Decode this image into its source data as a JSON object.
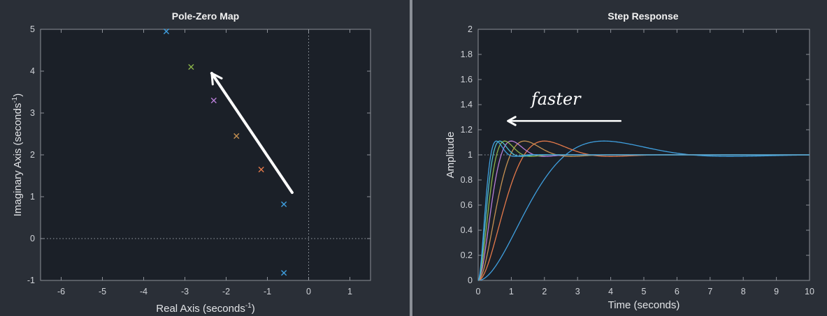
{
  "chart_data": [
    {
      "type": "scatter",
      "title": "Pole-Zero Map",
      "xlabel": "Real Axis (seconds",
      "xlabel_sup": "-1",
      "xlabel_suffix": ")",
      "ylabel": "Imaginary Axis (seconds",
      "ylabel_sup": "-1",
      "ylabel_suffix": ")",
      "xlim": [
        -6.5,
        1.5
      ],
      "ylim": [
        -1,
        5
      ],
      "xticks": [
        -6,
        -5,
        -4,
        -3,
        -2,
        -1,
        0,
        1
      ],
      "yticks": [
        -1,
        0,
        1,
        2,
        3,
        4,
        5
      ],
      "grid": false,
      "zero_lines": true,
      "marker": "x",
      "points": [
        {
          "x": -3.45,
          "y": 4.95,
          "color": "#3f9fdf"
        },
        {
          "x": -2.85,
          "y": 4.1,
          "color": "#8cb44a"
        },
        {
          "x": -2.3,
          "y": 3.3,
          "color": "#b87ed8"
        },
        {
          "x": -1.75,
          "y": 2.45,
          "color": "#c69152"
        },
        {
          "x": -1.15,
          "y": 1.65,
          "color": "#e4794a"
        },
        {
          "x": -0.6,
          "y": 0.82,
          "color": "#3f9fdf"
        },
        {
          "x": -0.6,
          "y": -0.82,
          "color": "#3f9fdf"
        }
      ],
      "annotation": {
        "type": "arrow",
        "from": [
          -0.4,
          1.1
        ],
        "to": [
          -2.35,
          3.95
        ],
        "color": "#ffffff"
      }
    },
    {
      "type": "line",
      "title": "Step Response",
      "xlabel": "Time (seconds)",
      "ylabel": "Amplitude",
      "xlim": [
        0,
        10
      ],
      "ylim": [
        0,
        2
      ],
      "xticks": [
        0,
        1,
        2,
        3,
        4,
        5,
        6,
        7,
        8,
        9,
        10
      ],
      "yticks": [
        0,
        0.2,
        0.4,
        0.6,
        0.8,
        1,
        1.2,
        1.4,
        1.6,
        1.8,
        2
      ],
      "grid": false,
      "steady_state_line": 1,
      "overshoot": 0.11,
      "series": [
        {
          "peak_time": 3.8,
          "color": "#3f9fdf"
        },
        {
          "peak_time": 2.0,
          "color": "#e4794a"
        },
        {
          "peak_time": 1.4,
          "color": "#c69152"
        },
        {
          "peak_time": 1.0,
          "color": "#b87ed8"
        },
        {
          "peak_time": 0.8,
          "color": "#8cb44a"
        },
        {
          "peak_time": 0.65,
          "color": "#4fbcc8"
        },
        {
          "peak_time": 0.55,
          "color": "#3f9fdf"
        }
      ],
      "annotation": {
        "type": "arrow",
        "text": "faster",
        "from": [
          4.3,
          1.27
        ],
        "to": [
          0.9,
          1.27
        ],
        "color": "#ffffff"
      }
    }
  ]
}
